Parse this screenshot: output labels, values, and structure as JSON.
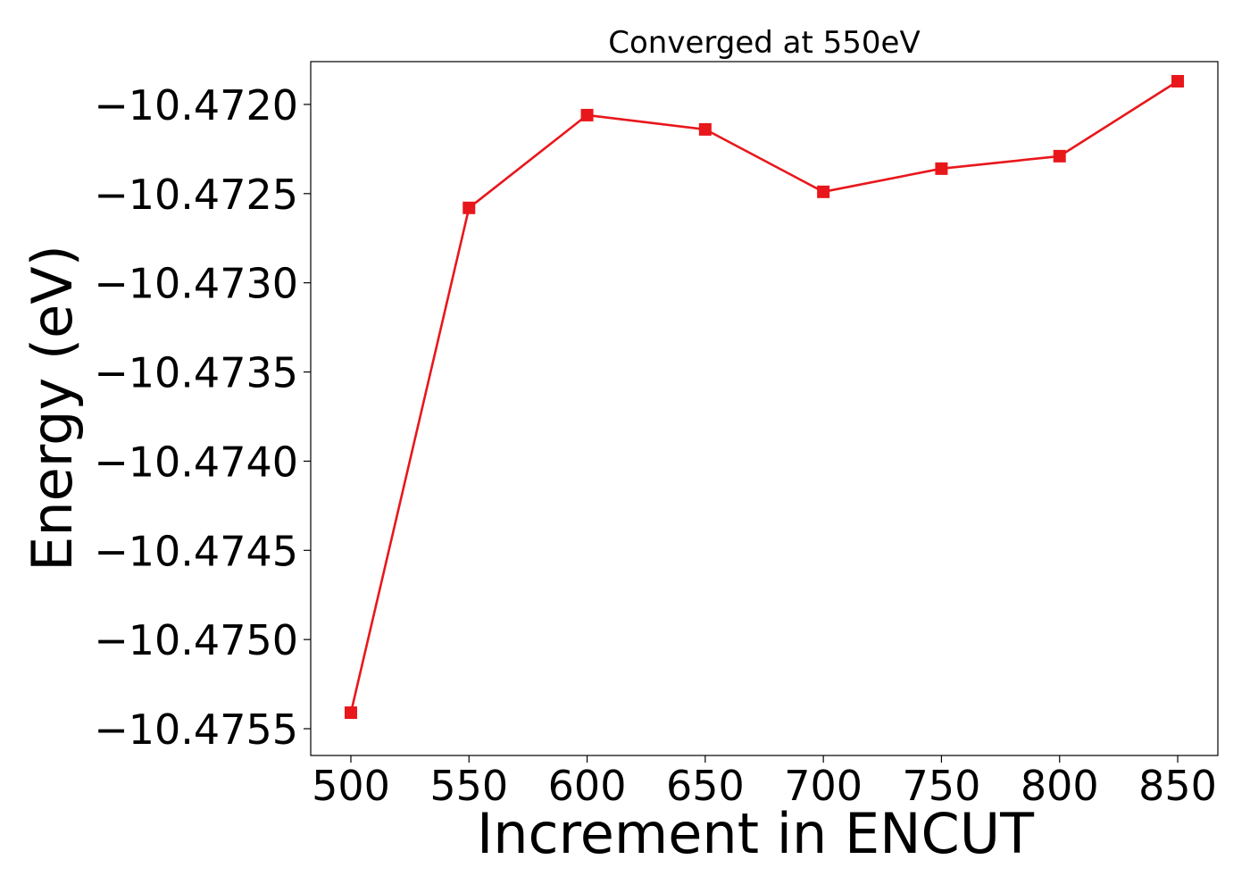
{
  "chart_data": {
    "type": "line",
    "title": "Converged at 550eV",
    "xlabel": "Increment in ENCUT",
    "ylabel": "Energy (eV)",
    "x": [
      500,
      550,
      600,
      650,
      700,
      750,
      800,
      850
    ],
    "series": [
      {
        "values": [
          -10.47541,
          -10.47258,
          -10.47206,
          -10.47214,
          -10.47249,
          -10.47236,
          -10.47229,
          -10.47187
        ],
        "color": "#e8171b",
        "marker": "square"
      }
    ],
    "xlim": [
      483,
      867
    ],
    "ylim": [
      -10.47565,
      -10.47176
    ],
    "xticks": [
      500,
      550,
      600,
      650,
      700,
      750,
      800,
      850
    ],
    "xtick_labels": [
      "500",
      "550",
      "600",
      "650",
      "700",
      "750",
      "800",
      "850"
    ],
    "yticks": [
      -10.4755,
      -10.475,
      -10.4745,
      -10.474,
      -10.4735,
      -10.473,
      -10.4725,
      -10.472
    ],
    "ytick_labels": [
      "−10.4755",
      "−10.4750",
      "−10.4745",
      "−10.4740",
      "−10.4735",
      "−10.4730",
      "−10.4725",
      "−10.4720"
    ],
    "grid": false,
    "legend": "none"
  }
}
